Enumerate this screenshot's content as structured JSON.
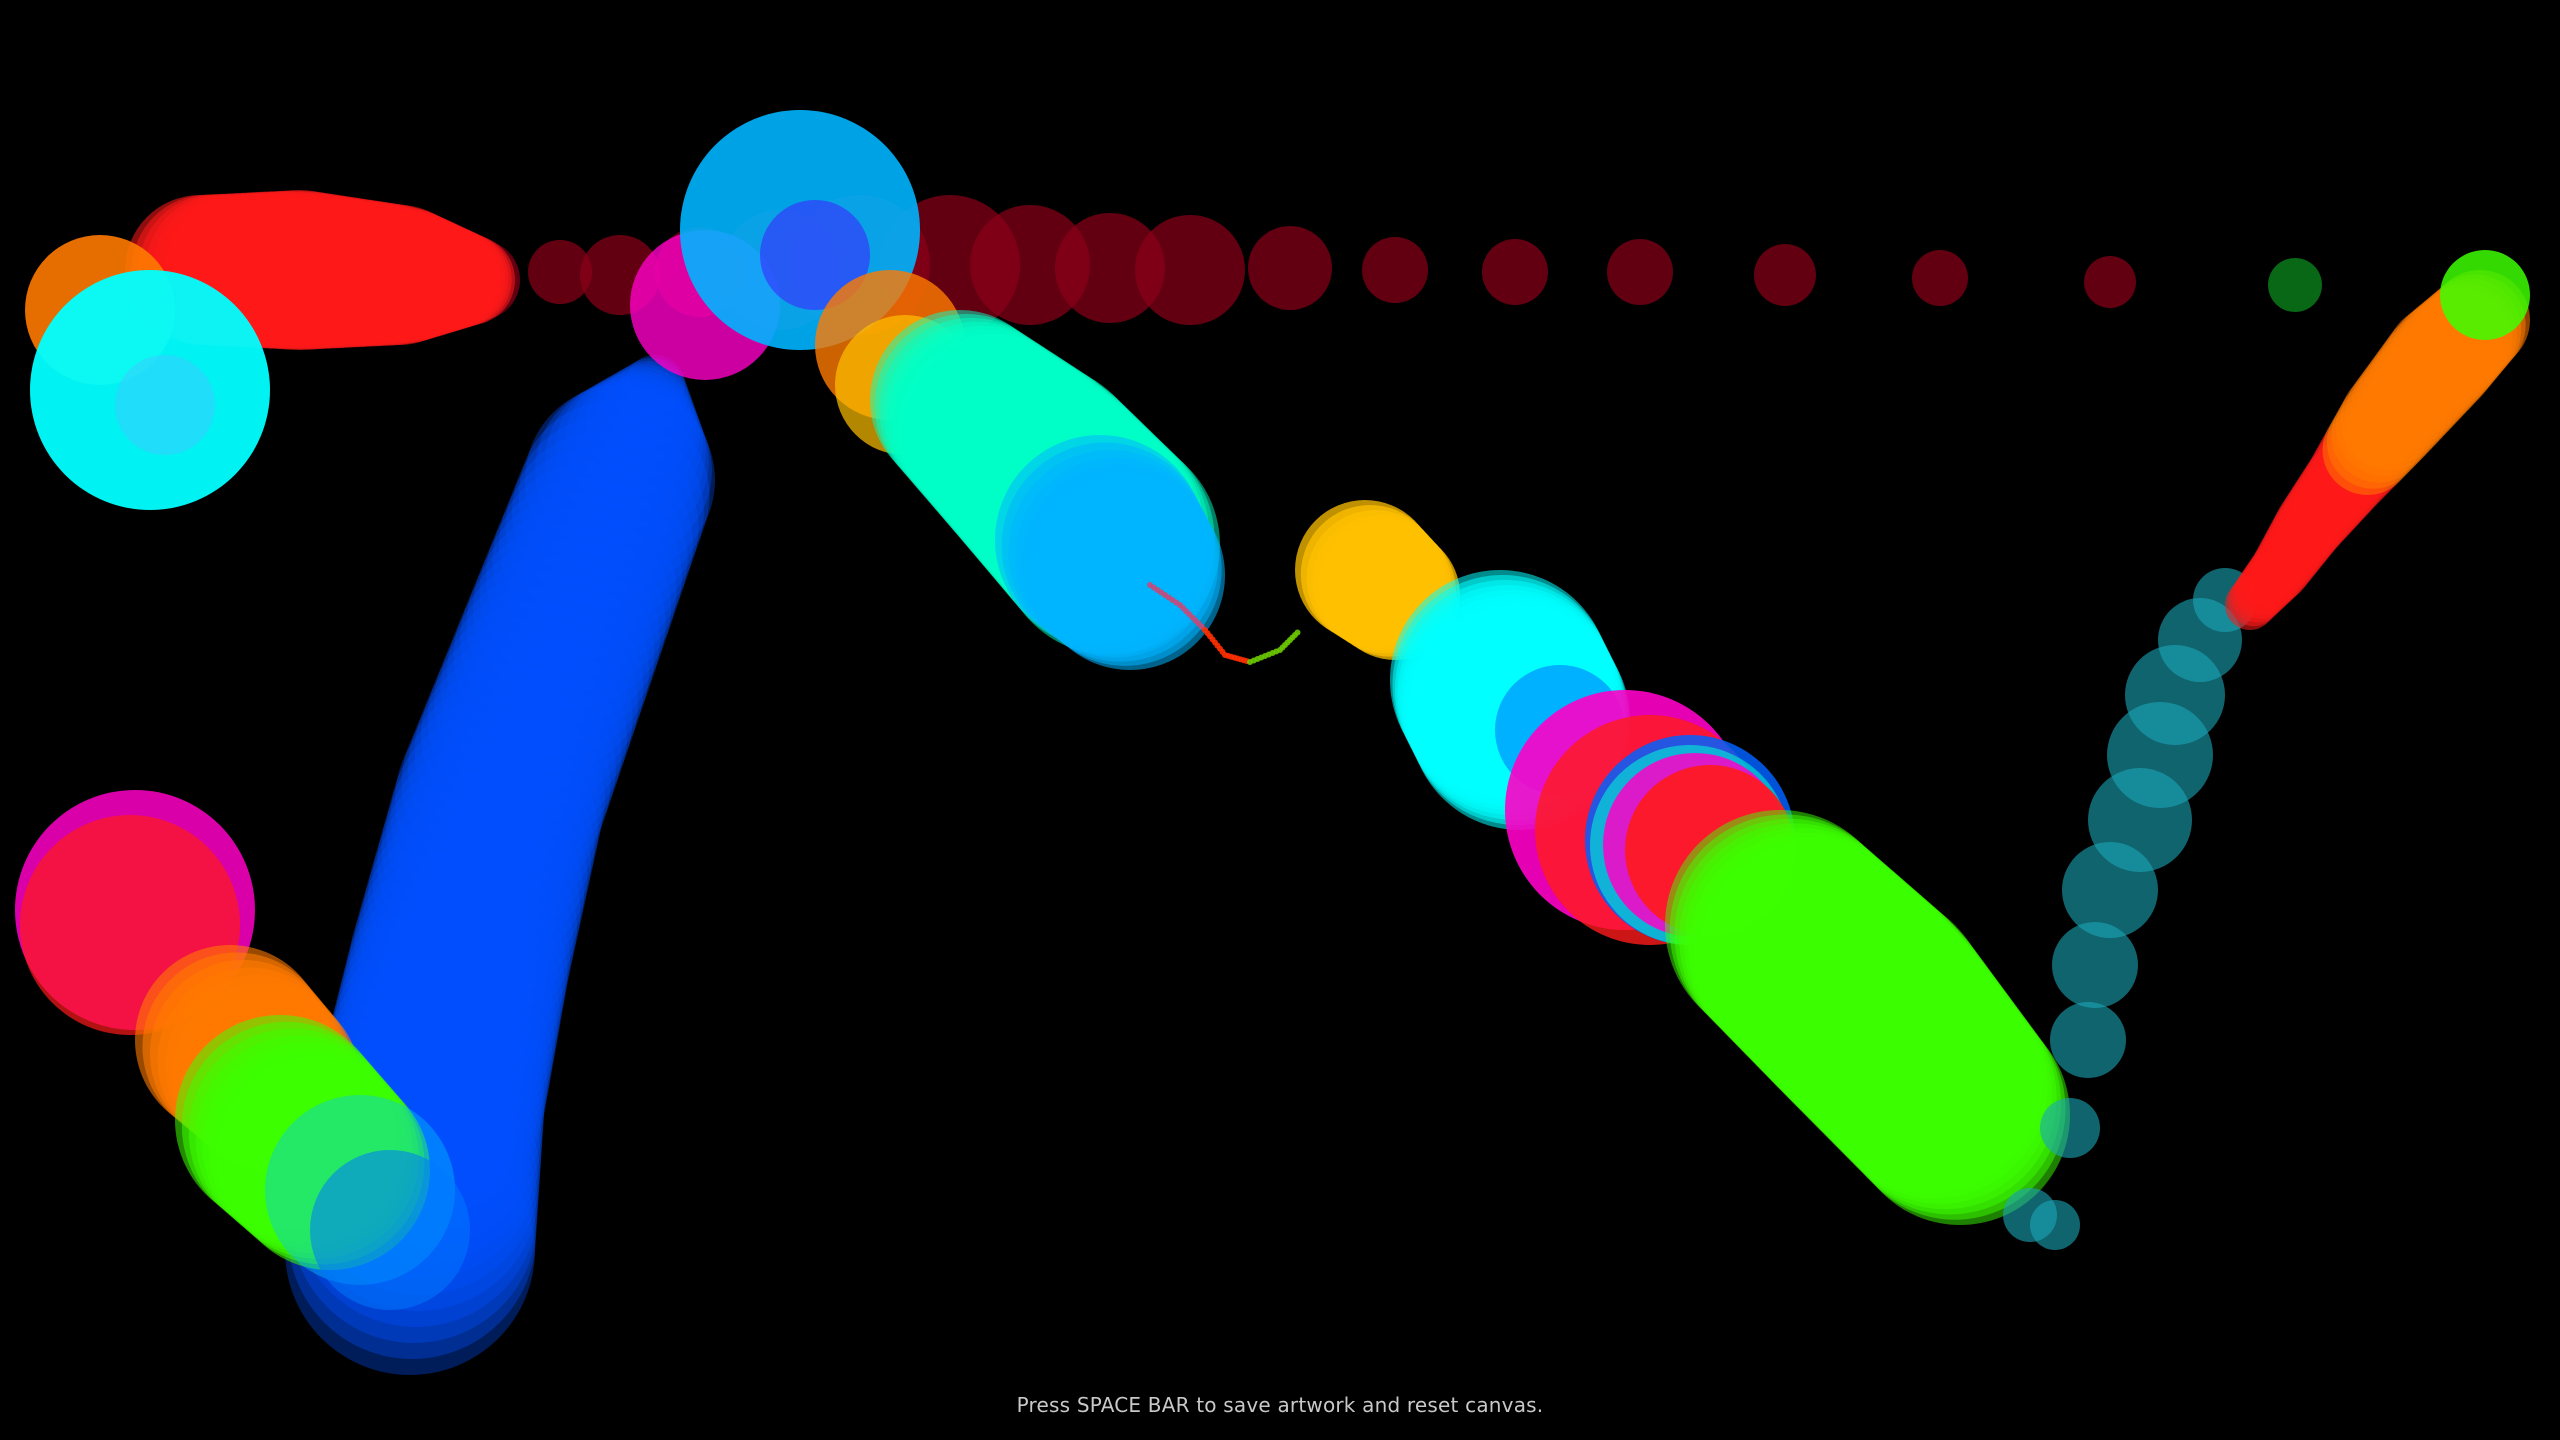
{
  "canvas": {
    "background": "#000000",
    "hint_text": "Press SPACE BAR to save artwork and reset canvas."
  },
  "palette": {
    "cyan": "#00ffff",
    "sky": "#00b4ff",
    "blue": "#0050ff",
    "red": "#ff1a1a",
    "orange": "#ff7a00",
    "green": "#3cff00",
    "magenta": "#ff00c8",
    "maroon": "#8c0018",
    "teal": "#1aa7b8",
    "aqua": "#00ffc8",
    "yellow": "#ffc000"
  }
}
